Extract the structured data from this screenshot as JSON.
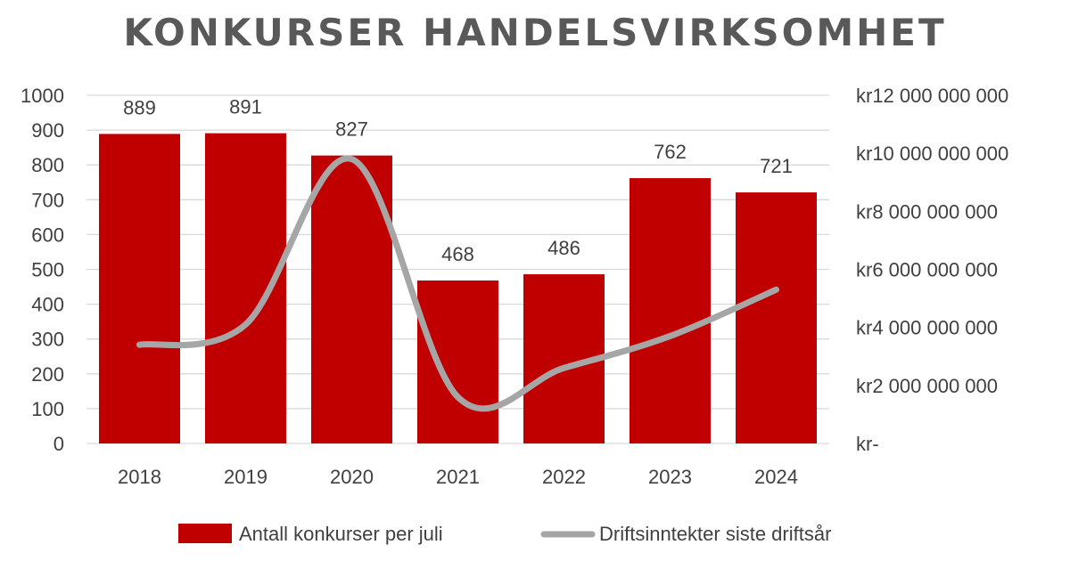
{
  "chart_data": {
    "type": "bar",
    "title": "KONKURSER HANDELSVIRKSOMHET",
    "categories": [
      "2018",
      "2019",
      "2020",
      "2021",
      "2022",
      "2023",
      "2024"
    ],
    "series": [
      {
        "name": "Antall konkurser per juli",
        "type": "bar",
        "axis": "left",
        "values": [
          889,
          891,
          827,
          468,
          486,
          762,
          721
        ],
        "color": "#c00000"
      },
      {
        "name": "Driftsinntekter siste driftsår",
        "type": "line",
        "axis": "right",
        "smooth": true,
        "values": [
          3400000000,
          4100000000,
          9800000000,
          1600000000,
          2600000000,
          3700000000,
          5300000000
        ],
        "color": "#a6a6a6"
      }
    ],
    "y_left": {
      "range": [
        0,
        1000
      ],
      "ticks": [
        "0",
        "100",
        "200",
        "300",
        "400",
        "500",
        "600",
        "700",
        "800",
        "900",
        "1000"
      ]
    },
    "y_right": {
      "range": [
        0,
        12000000000
      ],
      "ticks": [
        "kr-",
        "kr2 000 000 000",
        "kr4 000 000 000",
        "kr6 000 000 000",
        "kr8 000 000 000",
        "kr10 000 000 000",
        "kr12 000 000 000"
      ]
    },
    "data_labels": [
      "889",
      "891",
      "827",
      "468",
      "486",
      "762",
      "721"
    ],
    "grid": true,
    "legend_position": "bottom"
  }
}
